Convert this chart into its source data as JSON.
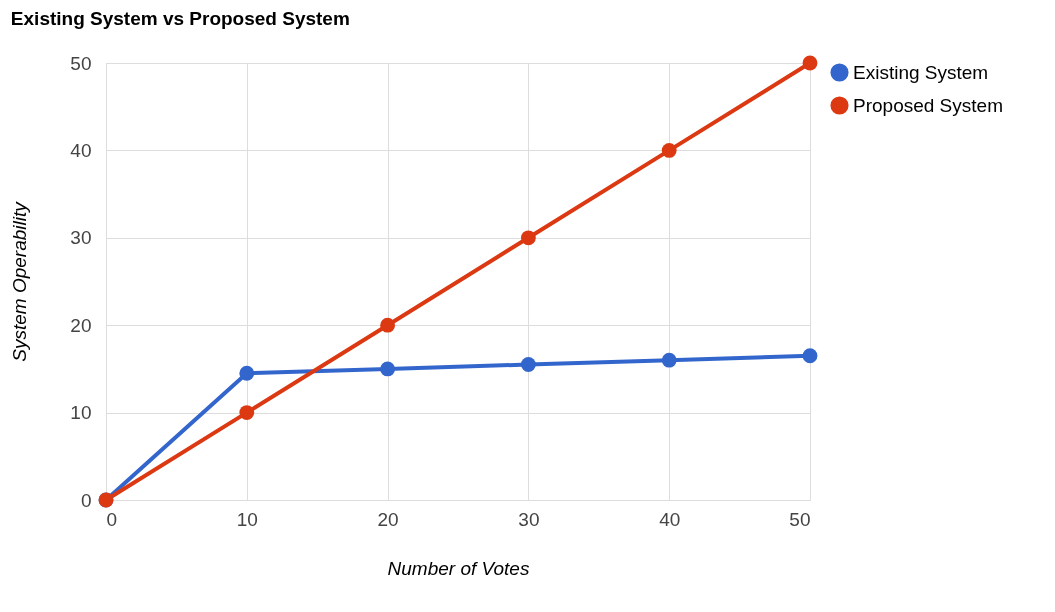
{
  "chart_data": {
    "type": "line",
    "title": "Existing System vs Proposed System",
    "xlabel": "Number of Votes",
    "ylabel": "System Operability",
    "x": [
      0,
      10,
      20,
      30,
      40,
      50
    ],
    "series": [
      {
        "name": "Existing System",
        "color": "#3366cc",
        "values": [
          0,
          14.5,
          15,
          15.5,
          16,
          16.5
        ]
      },
      {
        "name": "Proposed System",
        "color": "#dc3912",
        "values": [
          0,
          10,
          20,
          30,
          40,
          50
        ]
      }
    ],
    "xlim": [
      0,
      50
    ],
    "xticks": [
      0,
      10,
      20,
      30,
      40,
      50
    ],
    "ylim": [
      0,
      50
    ],
    "yticks": [
      0,
      10,
      20,
      30,
      40,
      50
    ],
    "grid": true,
    "legend": "right",
    "marker": "circle",
    "line_style": "solid"
  }
}
